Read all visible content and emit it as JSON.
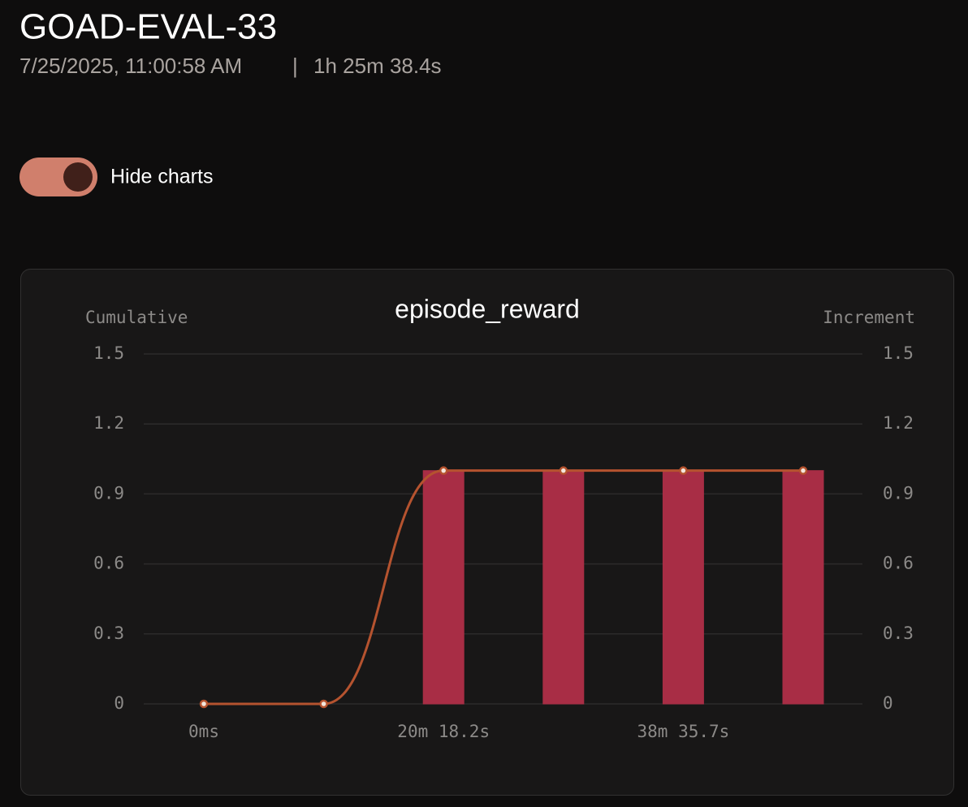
{
  "header": {
    "title": "GOAD-EVAL-33",
    "timestamp": "7/25/2025, 11:00:58 AM",
    "separator": "|",
    "duration": "1h 25m 38.4s"
  },
  "toggle": {
    "label": "Hide charts"
  },
  "chart_data": {
    "type": "bar-line",
    "title": "episode_reward",
    "categories": [
      "0ms",
      null,
      "20m 18.2s",
      null,
      "38m 35.7s",
      null
    ],
    "series": [
      {
        "name": "Cumulative",
        "type": "line",
        "axis": "y",
        "color": "#b5532f",
        "values": [
          0,
          0,
          1,
          1,
          1,
          1
        ]
      },
      {
        "name": "Increment",
        "type": "bar",
        "axis": "y2",
        "color": "#a82d45",
        "values": [
          0,
          0,
          1,
          1,
          1,
          1
        ]
      }
    ],
    "ylim": [
      0,
      1.5
    ],
    "yticks": [
      0,
      0.3,
      0.6,
      0.9,
      1.2,
      1.5
    ],
    "y2lim": [
      0,
      1.5
    ],
    "y2ticks": [
      0,
      0.3,
      0.6,
      0.9,
      1.2,
      1.5
    ],
    "grid": true
  }
}
